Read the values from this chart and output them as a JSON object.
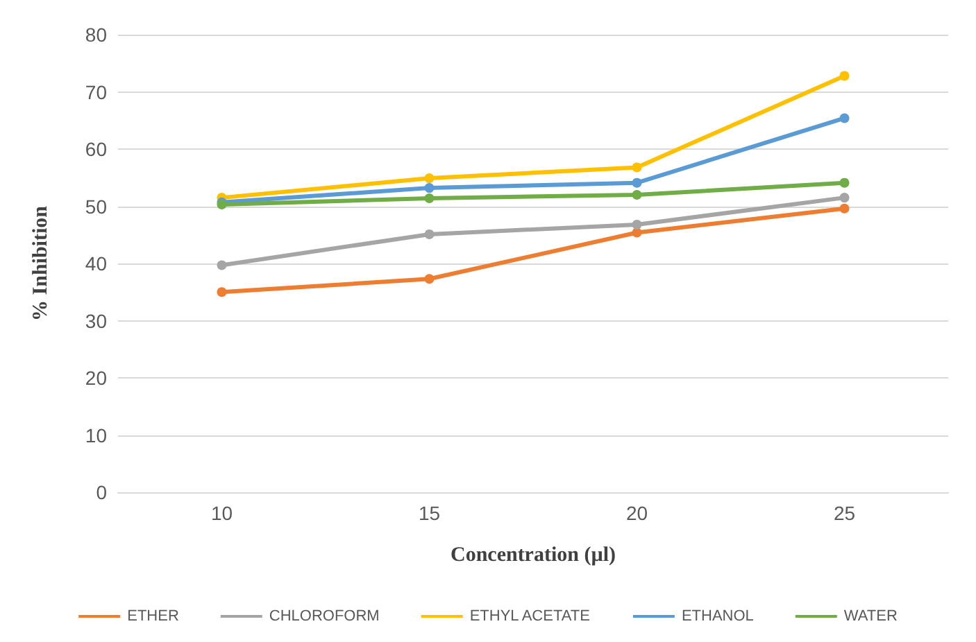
{
  "chart_data": {
    "type": "line",
    "xlabel": "Concentration (µl)",
    "ylabel": "% Inhibition",
    "categories": [
      "10",
      "15",
      "20",
      "25"
    ],
    "series": [
      {
        "name": "ETHER",
        "color": "#ed7d31",
        "values": [
          35.0,
          37.3,
          45.4,
          49.6
        ]
      },
      {
        "name": "CHLOROFORM",
        "color": "#a5a5a5",
        "values": [
          39.7,
          45.1,
          46.8,
          51.5
        ]
      },
      {
        "name": "ETHYL ACETATE",
        "color": "#ffc000",
        "values": [
          51.5,
          54.9,
          56.8,
          72.8
        ]
      },
      {
        "name": "ETHANOL",
        "color": "#5b9bd5",
        "values": [
          50.7,
          53.2,
          54.1,
          65.4
        ]
      },
      {
        "name": "WATER",
        "color": "#70ad47",
        "values": [
          50.3,
          51.4,
          52.0,
          54.1
        ]
      }
    ],
    "ylim": [
      0,
      80
    ],
    "yticks": [
      0,
      10,
      20,
      30,
      40,
      50,
      60,
      70,
      80
    ],
    "grid": "y",
    "legend": "bottom",
    "marker": "circle",
    "line_style": "solid"
  }
}
